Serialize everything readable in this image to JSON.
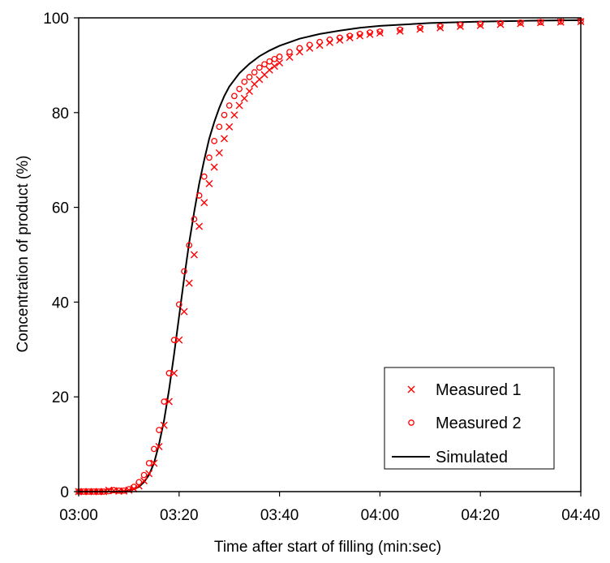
{
  "chart_data": {
    "type": "scatter",
    "xlabel": "Time after start of filling (min:sec)",
    "ylabel": "Concentration of product (%)",
    "x_unit": "seconds (axis labelled min:sec)",
    "xlim": [
      "03:00",
      "04:40"
    ],
    "ylim": [
      0,
      100
    ],
    "x_ticks": [
      "03:00",
      "03:20",
      "03:40",
      "04:00",
      "04:20",
      "04:40"
    ],
    "y_ticks": [
      "0",
      "20",
      "40",
      "60",
      "80",
      "100"
    ],
    "grid": false,
    "legend_position": "bottom-right",
    "colors": {
      "measured": "#ff0000",
      "simulated": "#000000",
      "axes": "#000000"
    },
    "series": [
      {
        "name": "Measured 1",
        "kind": "scatter",
        "marker": "x",
        "x": [
          "03:00",
          "03:01",
          "03:02",
          "03:03",
          "03:04",
          "03:05",
          "03:06",
          "03:07",
          "03:08",
          "03:09",
          "03:10",
          "03:11",
          "03:12",
          "03:13",
          "03:14",
          "03:15",
          "03:16",
          "03:17",
          "03:18",
          "03:19",
          "03:20",
          "03:21",
          "03:22",
          "03:23",
          "03:24",
          "03:25",
          "03:26",
          "03:27",
          "03:28",
          "03:29",
          "03:30",
          "03:31",
          "03:32",
          "03:33",
          "03:34",
          "03:35",
          "03:36",
          "03:37",
          "03:38",
          "03:39",
          "03:40",
          "03:42",
          "03:44",
          "03:46",
          "03:48",
          "03:50",
          "03:52",
          "03:54",
          "03:56",
          "03:58",
          "04:00",
          "04:04",
          "04:08",
          "04:12",
          "04:16",
          "04:20",
          "04:24",
          "04:28",
          "04:32",
          "04:36",
          "04:40"
        ],
        "y": [
          0,
          0,
          0,
          0,
          0,
          0,
          0.3,
          0.2,
          0.1,
          0.1,
          0.3,
          0.6,
          1.2,
          2.3,
          3.8,
          6.0,
          9.5,
          14,
          19,
          25,
          32,
          38,
          44,
          50,
          56,
          61,
          65,
          68.5,
          71.5,
          74.5,
          77,
          79.5,
          81.5,
          83,
          84.5,
          86,
          87,
          88,
          89,
          89.8,
          90.5,
          91.7,
          92.8,
          93.6,
          94.2,
          94.8,
          95.3,
          95.8,
          96.2,
          96.5,
          96.8,
          97.2,
          97.6,
          97.9,
          98.2,
          98.4,
          98.6,
          98.8,
          99,
          99.1,
          99.2
        ]
      },
      {
        "name": "Measured 2",
        "kind": "scatter",
        "marker": "o",
        "x": [
          "03:00",
          "03:01",
          "03:02",
          "03:03",
          "03:04",
          "03:05",
          "03:06",
          "03:07",
          "03:08",
          "03:09",
          "03:10",
          "03:11",
          "03:12",
          "03:13",
          "03:14",
          "03:15",
          "03:16",
          "03:17",
          "03:18",
          "03:19",
          "03:20",
          "03:21",
          "03:22",
          "03:23",
          "03:24",
          "03:25",
          "03:26",
          "03:27",
          "03:28",
          "03:29",
          "03:30",
          "03:31",
          "03:32",
          "03:33",
          "03:34",
          "03:35",
          "03:36",
          "03:37",
          "03:38",
          "03:39",
          "03:40",
          "03:42",
          "03:44",
          "03:46",
          "03:48",
          "03:50",
          "03:52",
          "03:54",
          "03:56",
          "03:58",
          "04:00",
          "04:04",
          "04:08",
          "04:12",
          "04:16",
          "04:20",
          "04:24",
          "04:28",
          "04:32",
          "04:36",
          "04:40"
        ],
        "y": [
          0,
          0,
          0,
          0,
          0,
          0,
          0.1,
          0.3,
          0.2,
          0.2,
          0.5,
          1.0,
          2.0,
          3.5,
          6.0,
          9.0,
          13,
          19,
          25,
          32,
          39.5,
          46.5,
          52,
          57.5,
          62.5,
          66.5,
          70.5,
          74,
          77,
          79.5,
          81.5,
          83.5,
          85,
          86.5,
          87.5,
          88.5,
          89.5,
          90.2,
          90.8,
          91.3,
          91.8,
          92.8,
          93.6,
          94.3,
          94.9,
          95.4,
          95.8,
          96.2,
          96.6,
          96.9,
          97.1,
          97.5,
          97.9,
          98.2,
          98.5,
          98.7,
          98.9,
          99,
          99.1,
          99.2,
          99.3
        ]
      },
      {
        "name": "Simulated",
        "kind": "line",
        "x": [
          "03:00",
          "03:08",
          "03:10",
          "03:11",
          "03:12",
          "03:13",
          "03:14",
          "03:15",
          "03:16",
          "03:17",
          "03:18",
          "03:19",
          "03:20",
          "03:21",
          "03:22",
          "03:23",
          "03:24",
          "03:25",
          "03:26",
          "03:27",
          "03:28",
          "03:29",
          "03:30",
          "03:32",
          "03:34",
          "03:36",
          "03:38",
          "03:40",
          "03:44",
          "03:48",
          "03:52",
          "03:56",
          "04:00",
          "04:10",
          "04:20",
          "04:30",
          "04:40"
        ],
        "y": [
          0,
          0,
          0.2,
          0.5,
          1.0,
          2.0,
          3.5,
          6.0,
          10.0,
          15,
          21.5,
          29,
          37,
          45,
          52.5,
          59,
          65,
          70,
          74.5,
          78,
          81,
          83.5,
          85.5,
          88.3,
          90.3,
          91.9,
          93.1,
          94.1,
          95.6,
          96.6,
          97.3,
          97.9,
          98.3,
          98.9,
          99.2,
          99.4,
          99.5
        ]
      }
    ]
  }
}
